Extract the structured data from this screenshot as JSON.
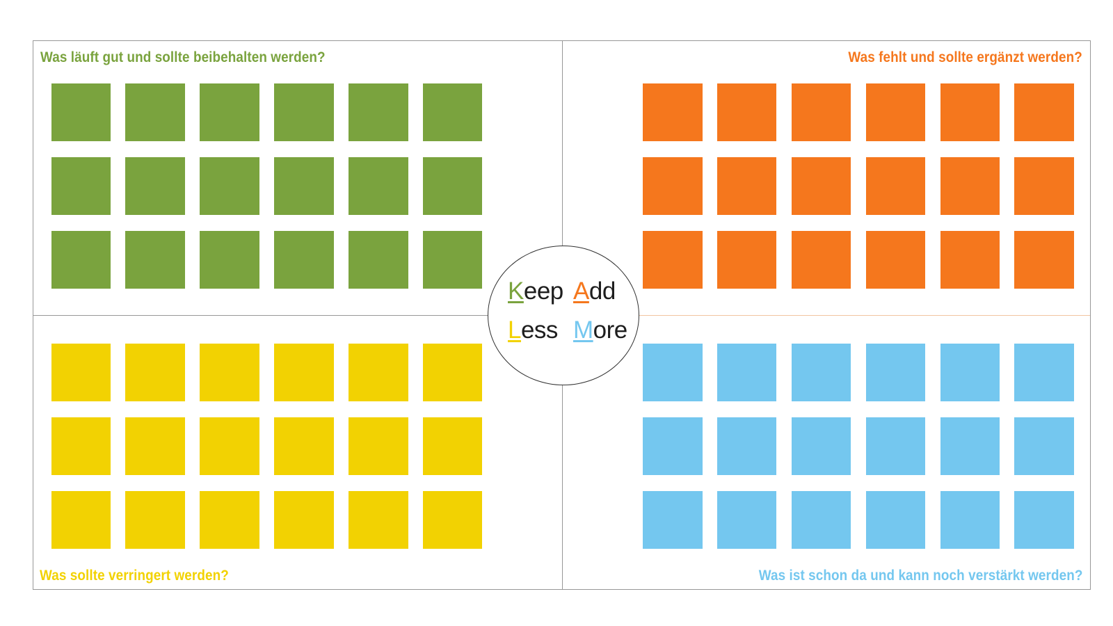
{
  "board": {
    "background": "#FFFFFF",
    "outer_border_color": "#979797",
    "divider_vertical_color": "#979797",
    "divider_horizontal_left_color": "#979797",
    "divider_horizontal_right_color": "#F2C5A0"
  },
  "quadrants": [
    {
      "id": "keep",
      "position": "top-left",
      "question": "Was läuft gut und sollte beibehalten werden?",
      "color": "#7AA33E",
      "rows": 3,
      "cols": 6
    },
    {
      "id": "add",
      "position": "top-right",
      "question": "Was fehlt und sollte ergänzt werden?",
      "color": "#F5771D",
      "rows": 3,
      "cols": 6
    },
    {
      "id": "less",
      "position": "bottom-left",
      "question": "Was sollte verringert werden?",
      "color": "#F2D202",
      "rows": 3,
      "cols": 6
    },
    {
      "id": "more",
      "position": "bottom-right",
      "question": "Was ist schon da und kann noch verstärkt werden?",
      "color": "#74C7EF",
      "rows": 3,
      "cols": 6
    }
  ],
  "legend": {
    "text_color": "#1E1E1E",
    "circle_border_color": "#303030",
    "words": [
      {
        "initial": "K",
        "rest": "eep",
        "color": "#7AA33E"
      },
      {
        "initial": "A",
        "rest": "dd",
        "color": "#F5771D"
      },
      {
        "initial": "L",
        "rest": "ess",
        "color": "#F2D202"
      },
      {
        "initial": "M",
        "rest": "ore",
        "color": "#74C7EF"
      }
    ]
  }
}
